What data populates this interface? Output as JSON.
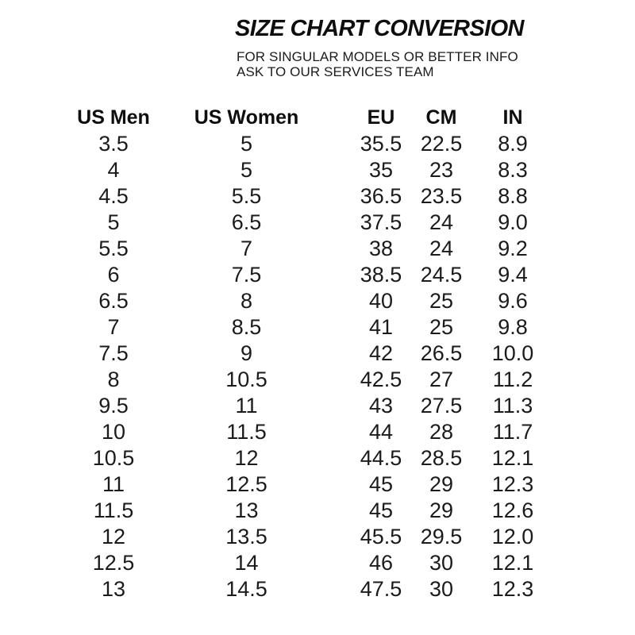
{
  "page": {
    "background": "#ffffff",
    "text_color": "#161616"
  },
  "header": {
    "title": "SIZE CHART CONVERSION",
    "subtitle_line1": "FOR SINGULAR MODELS OR BETTER INFO",
    "subtitle_line2": "ASK TO OUR SERVICES TEAM"
  },
  "chart_data": {
    "type": "table",
    "title": "SIZE CHART CONVERSION",
    "columns": [
      "US Men",
      "US Women",
      "EU",
      "CM",
      "IN"
    ],
    "rows": [
      [
        "3.5",
        "5",
        "35.5",
        "22.5",
        "8.9"
      ],
      [
        "4",
        "5",
        "35",
        "23",
        "8.3"
      ],
      [
        "4.5",
        "5.5",
        "36.5",
        "23.5",
        "8.8"
      ],
      [
        "5",
        "6.5",
        "37.5",
        "24",
        "9.0"
      ],
      [
        "5.5",
        "7",
        "38",
        "24",
        "9.2"
      ],
      [
        "6",
        "7.5",
        "38.5",
        "24.5",
        "9.4"
      ],
      [
        "6.5",
        "8",
        "40",
        "25",
        "9.6"
      ],
      [
        "7",
        "8.5",
        "41",
        "25",
        "9.8"
      ],
      [
        "7.5",
        "9",
        "42",
        "26.5",
        "10.0"
      ],
      [
        "8",
        "10.5",
        "42.5",
        "27",
        "11.2"
      ],
      [
        "9.5",
        "11",
        "43",
        "27.5",
        "11.3"
      ],
      [
        "10",
        "11.5",
        "44",
        "28",
        "11.7"
      ],
      [
        "10.5",
        "12",
        "44.5",
        "28.5",
        "12.1"
      ],
      [
        "11",
        "12.5",
        "45",
        "29",
        "12.3"
      ],
      [
        "11.5",
        "13",
        "45",
        "29",
        "12.6"
      ],
      [
        "12",
        "13.5",
        "45.5",
        "29.5",
        "12.0"
      ],
      [
        "12.5",
        "14",
        "46",
        "30",
        "12.1"
      ],
      [
        "13",
        "14.5",
        "47.5",
        "30",
        "12.3"
      ]
    ]
  }
}
